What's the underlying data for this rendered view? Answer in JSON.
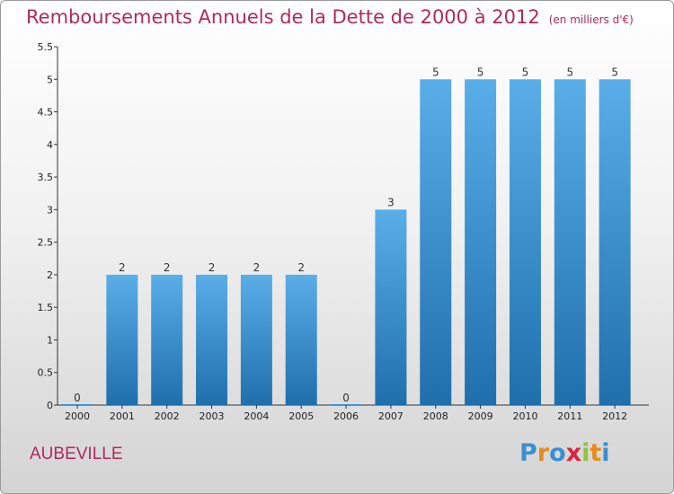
{
  "header": {
    "title": "Remboursements Annuels de la Dette de 2000 à 2012",
    "unit": "(en milliers d'€)"
  },
  "commune": "AUBEVILLE",
  "logo": {
    "text": "Proxiti",
    "letters": [
      {
        "ch": "P",
        "color": "#3b8fd1"
      },
      {
        "ch": "r",
        "color": "#e88b1f"
      },
      {
        "ch": "o",
        "color": "#3b8fd1"
      },
      {
        "ch": "x",
        "color": "#d9263f"
      },
      {
        "ch": "i",
        "color": "#8cc63f"
      },
      {
        "ch": "t",
        "color": "#e88b1f"
      },
      {
        "ch": "i",
        "color": "#3b8fd1"
      }
    ]
  },
  "colors": {
    "accent": "#b02a5c",
    "bar_top": "#5aaee8",
    "bar_bottom": "#1f6fad",
    "axis": "#333333"
  },
  "chart_data": {
    "type": "bar",
    "title": "Remboursements Annuels de la Dette de 2000 à 2012",
    "subtitle": "(en milliers d'€)",
    "xlabel": "",
    "ylabel": "",
    "categories": [
      "2000",
      "2001",
      "2002",
      "2003",
      "2004",
      "2005",
      "2006",
      "2007",
      "2008",
      "2009",
      "2010",
      "2011",
      "2012"
    ],
    "values": [
      0,
      2,
      2,
      2,
      2,
      2,
      0,
      3,
      5,
      5,
      5,
      5,
      5
    ],
    "data_labels": [
      "0",
      "2",
      "2",
      "2",
      "2",
      "2",
      "0",
      "3",
      "5",
      "5",
      "5",
      "5",
      "5"
    ],
    "ylim": [
      0,
      5.5
    ],
    "yticks": [
      0,
      0.5,
      1,
      1.5,
      2,
      2.5,
      3,
      3.5,
      4,
      4.5,
      5,
      5.5
    ],
    "ytick_labels": [
      "0",
      "0.5",
      "1",
      "1.5",
      "2",
      "2.5",
      "3",
      "3.5",
      "4",
      "4.5",
      "5",
      "5.5"
    ],
    "grid": false,
    "legend": "none"
  }
}
